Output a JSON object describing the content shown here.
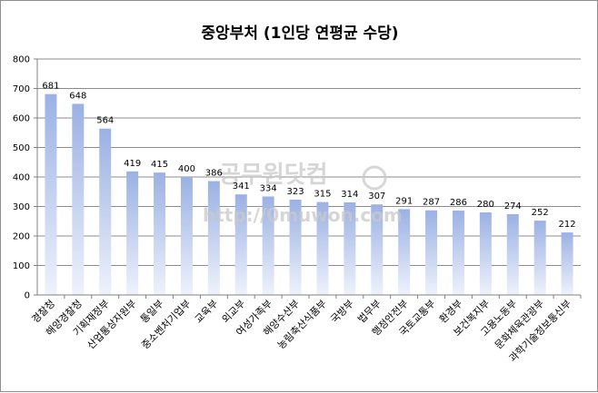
{
  "chart_data": {
    "type": "bar",
    "title": "중앙부처 (1인당 연평균 수당)",
    "categories": [
      "경찰청",
      "해양경찰청",
      "기획재정부",
      "산업통상자원부",
      "통일부",
      "중소벤처기업부",
      "교육부",
      "외교부",
      "여성가족부",
      "해양수산부",
      "농림축산식품부",
      "국방부",
      "법무부",
      "행정안전부",
      "국토교통부",
      "환경부",
      "보건복지부",
      "고용노동부",
      "문화체육관광부",
      "과학기술정보통신부"
    ],
    "values": [
      681,
      648,
      564,
      419,
      415,
      400,
      386,
      341,
      334,
      323,
      315,
      314,
      307,
      291,
      287,
      286,
      280,
      274,
      252,
      212
    ],
    "ylim": [
      0,
      800
    ],
    "yticks": [
      0,
      100,
      200,
      300,
      400,
      500,
      600,
      700,
      800
    ],
    "grid": true,
    "legend": "none",
    "bar_color_top": "#9bb1e4",
    "bar_color_bottom": "#eef2fb"
  },
  "watermark": {
    "text": "공무원닷컴",
    "url": "http://0muwon.com"
  }
}
